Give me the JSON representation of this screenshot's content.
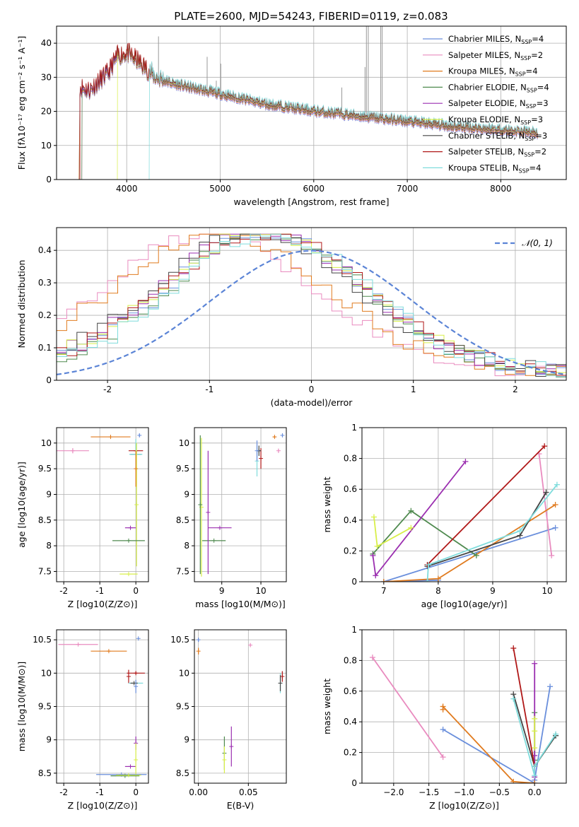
{
  "figure": {
    "title": "PLATE=2600, MJD=54243, FIBERID=0119, z=0.083"
  },
  "models": [
    {
      "name": "Chabrier MILES",
      "nssp": "4",
      "color": "#6a8fdc"
    },
    {
      "name": "Salpeter MILES",
      "nssp": "2",
      "color": "#e98bbf"
    },
    {
      "name": "Kroupa MILES",
      "nssp": "4",
      "color": "#e07b1f"
    },
    {
      "name": "Chabrier ELODIE",
      "nssp": "4",
      "color": "#4f8a4f"
    },
    {
      "name": "Salpeter ELODIE",
      "nssp": "3",
      "color": "#9b2fb0"
    },
    {
      "name": "Kroupa ELODIE",
      "nssp": "3",
      "color": "#d8ef4a"
    },
    {
      "name": "Chabrier STELIB",
      "nssp": "3",
      "color": "#444444"
    },
    {
      "name": "Salpeter STELIB",
      "nssp": "2",
      "color": "#b01818"
    },
    {
      "name": "Kroupa STELIB",
      "nssp": "4",
      "color": "#7fdcdc"
    }
  ],
  "chart_data": [
    {
      "id": "spectrum",
      "type": "line",
      "xlabel": "wavelength [Angstrom, rest frame]",
      "ylabel": "Flux [fλ10⁻¹⁷ erg cm⁻² s⁻¹ A⁻¹]",
      "xlim": [
        3250,
        8700
      ],
      "ylim": [
        0,
        45
      ],
      "xticks": [
        4000,
        5000,
        6000,
        7000,
        8000
      ],
      "yticks": [
        0,
        10,
        20,
        30,
        40
      ],
      "legend_position": "top-right",
      "observed_color": "#999999",
      "continuum": {
        "x": [
          3500,
          3600,
          3800,
          3900,
          4000,
          4100,
          4300,
          4500,
          5000,
          5500,
          6000,
          6500,
          7000,
          7500,
          8000,
          8400
        ],
        "y": [
          27,
          26,
          31,
          36,
          37,
          35,
          30,
          28,
          25,
          22,
          20,
          18.5,
          17,
          15.5,
          14.5,
          13.5
        ]
      }
    },
    {
      "id": "residuals",
      "type": "line",
      "xlabel": "(data-model)/error",
      "ylabel": "Normed distribution",
      "xlim": [
        -2.5,
        2.5
      ],
      "ylim": [
        0,
        0.47
      ],
      "xticks": [
        -2,
        -1,
        0,
        1,
        2
      ],
      "yticks": [
        0.0,
        0.1,
        0.2,
        0.3,
        0.4
      ],
      "legend_position": "top-right",
      "gaussian": {
        "label": "𝒩(0, 1)",
        "mu": 0,
        "sigma": 1,
        "color": "#5b84d6"
      },
      "histogram_bin_width": 0.1
    },
    {
      "id": "z-age",
      "type": "scatter",
      "xlabel": "Z [log10(Z/Z⊙)]",
      "ylabel": "age  [log10(age/yr)]",
      "xlim": [
        -2.2,
        0.35
      ],
      "ylim": [
        7.3,
        10.3
      ],
      "xticks": [
        -2,
        -1,
        0
      ],
      "yticks": [
        7.5,
        8.0,
        8.5,
        9.0,
        9.5,
        10.0
      ]
    },
    {
      "id": "mass-age",
      "type": "scatter",
      "xlabel": "mass [log10(M/M⊙)]",
      "xlim": [
        8.3,
        10.65
      ],
      "ylim": [
        7.3,
        10.3
      ],
      "xticks": [
        9,
        10
      ],
      "yticks": [
        7.5,
        8.0,
        8.5,
        9.0,
        9.5,
        10.0
      ]
    },
    {
      "id": "age-weight",
      "type": "line",
      "xlabel": "age  [log10(age/yr)]",
      "ylabel": "mass weight",
      "xlim": [
        6.6,
        10.35
      ],
      "ylim": [
        0,
        1
      ],
      "xticks": [
        7,
        8,
        9,
        10
      ],
      "yticks": [
        0.0,
        0.2,
        0.4,
        0.6,
        0.8,
        1.0
      ],
      "series": [
        {
          "x": [
            8.0,
            7.0,
            10.15
          ],
          "y": [
            0.01,
            0.0,
            0.35
          ]
        },
        {
          "x": [
            9.85,
            10.08
          ],
          "y": [
            0.83,
            0.17
          ]
        },
        {
          "x": [
            7.0,
            8.0,
            10.15
          ],
          "y": [
            0.0,
            0.02,
            0.5
          ]
        },
        {
          "x": [
            6.8,
            7.5,
            8.7
          ],
          "y": [
            0.18,
            0.46,
            0.17
          ]
        },
        {
          "x": [
            6.8,
            6.85,
            8.5
          ],
          "y": [
            0.17,
            0.04,
            0.78
          ]
        },
        {
          "x": [
            6.82,
            6.88,
            7.5
          ],
          "y": [
            0.42,
            0.23,
            0.35
          ]
        },
        {
          "x": [
            7.8,
            9.5,
            9.98
          ],
          "y": [
            0.1,
            0.3,
            0.58
          ]
        },
        {
          "x": [
            7.8,
            9.95
          ],
          "y": [
            0.11,
            0.88
          ]
        },
        {
          "x": [
            7.8,
            7.82,
            9.5,
            10.18
          ],
          "y": [
            0.0,
            0.11,
            0.33,
            0.63
          ]
        }
      ]
    },
    {
      "id": "z-mass",
      "type": "scatter",
      "xlabel": "Z [log10(Z/Z⊙)]",
      "ylabel": "mass [log10(M/M⊙)]",
      "xlim": [
        -2.2,
        0.35
      ],
      "ylim": [
        8.35,
        10.65
      ],
      "xticks": [
        -2,
        -1,
        0
      ],
      "yticks": [
        8.5,
        9.0,
        9.5,
        10.0,
        10.5
      ]
    },
    {
      "id": "ebv-mass",
      "type": "scatter",
      "xlabel": "E(B-V)",
      "xlim": [
        -0.004,
        0.088
      ],
      "ylim": [
        8.35,
        10.65
      ],
      "xticks": [
        0.0,
        0.05
      ],
      "xtick_labels": [
        "0.00",
        "0.05"
      ],
      "yticks": [
        8.5,
        9.0,
        9.5,
        10.0,
        10.5
      ]
    },
    {
      "id": "z-weight",
      "type": "line",
      "xlabel": "Z [log10(Z/Z⊙)]",
      "ylabel": "mass weight",
      "xlim": [
        -2.45,
        0.45
      ],
      "ylim": [
        0,
        1
      ],
      "xticks": [
        -2.0,
        -1.5,
        -1.0,
        -0.5,
        0.0
      ],
      "xtick_labels": [
        "−2.0",
        "−1.5",
        "−1.0",
        "−0.5",
        "0.0"
      ],
      "yticks": [
        0.0,
        0.2,
        0.4,
        0.6,
        0.8,
        1.0
      ],
      "series": [
        {
          "x": [
            -1.3,
            0.0,
            0.0,
            0.22
          ],
          "y": [
            0.35,
            0.0,
            0.02,
            0.63
          ]
        },
        {
          "x": [
            -2.3,
            -1.3
          ],
          "y": [
            0.82,
            0.17
          ]
        },
        {
          "x": [
            -1.3,
            -1.3,
            -0.3,
            0.0
          ],
          "y": [
            0.48,
            0.5,
            0.01,
            0.0
          ]
        },
        {
          "x": [
            0.0,
            0.0,
            0.0,
            0.3
          ],
          "y": [
            0.46,
            0.15,
            0.11,
            0.31
          ]
        },
        {
          "x": [
            0.0,
            0.0,
            0.0
          ],
          "y": [
            0.78,
            0.18,
            0.04
          ]
        },
        {
          "x": [
            0.0,
            0.0,
            0.0
          ],
          "y": [
            0.42,
            0.34,
            0.23
          ]
        },
        {
          "x": [
            -0.3,
            0.0,
            0.3
          ],
          "y": [
            0.58,
            0.11,
            0.31
          ]
        },
        {
          "x": [
            -0.3,
            0.0
          ],
          "y": [
            0.88,
            0.11
          ]
        },
        {
          "x": [
            -0.3,
            0.0,
            0.0,
            0.3
          ],
          "y": [
            0.55,
            0.05,
            0.11,
            0.32
          ]
        }
      ]
    }
  ]
}
